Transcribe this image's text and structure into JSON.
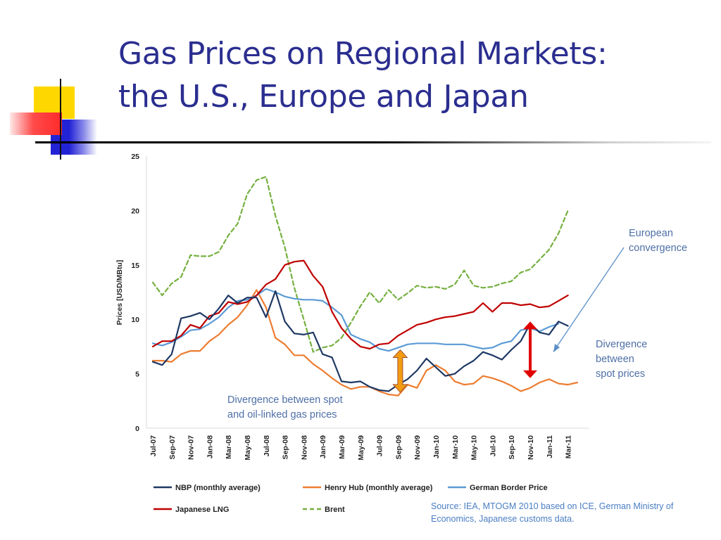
{
  "slide": {
    "title_line1": "Gas Prices on Regional Markets:",
    "title_line2": "the U.S., Europe and Japan",
    "source": "Source: IEA, MTOGM 2010 based on ICE, German Ministry of Economics, Japanese customs data.",
    "colors": {
      "title": "#2b2e8f",
      "rule": "#000000",
      "deco_yellow": "#ffd700",
      "deco_blue": "#2323d6",
      "deco_red": "#ff3b3b"
    }
  },
  "chart_data": {
    "type": "line",
    "ylabel": "Prices [USD/MBtu]",
    "ylim": [
      0,
      25
    ],
    "yticks": [
      0,
      5,
      10,
      15,
      20,
      25
    ],
    "x_tick_labels": [
      "Jul-07",
      "Sep-07",
      "Nov-07",
      "Jan-08",
      "Mar-08",
      "May-08",
      "Jul-08",
      "Sep-08",
      "Nov-08",
      "Jan-09",
      "Mar-09",
      "May-09",
      "Jul-09",
      "Sep-09",
      "Nov-09",
      "Jan-10",
      "Mar-10",
      "May-10",
      "Jul-10",
      "Sep-10",
      "Nov-10",
      "Jan-11",
      "Mar-11"
    ],
    "months": [
      "Jul-07",
      "Aug-07",
      "Sep-07",
      "Oct-07",
      "Nov-07",
      "Dec-07",
      "Jan-08",
      "Feb-08",
      "Mar-08",
      "Apr-08",
      "May-08",
      "Jun-08",
      "Jul-08",
      "Aug-08",
      "Sep-08",
      "Oct-08",
      "Nov-08",
      "Dec-08",
      "Jan-09",
      "Feb-09",
      "Mar-09",
      "Apr-09",
      "May-09",
      "Jun-09",
      "Jul-09",
      "Aug-09",
      "Sep-09",
      "Oct-09",
      "Nov-09",
      "Dec-09",
      "Jan-10",
      "Feb-10",
      "Mar-10",
      "Apr-10",
      "May-10",
      "Jun-10",
      "Jul-10",
      "Aug-10",
      "Sep-10",
      "Oct-10",
      "Nov-10",
      "Dec-10",
      "Jan-11",
      "Feb-11",
      "Mar-11",
      "Apr-11"
    ],
    "series": [
      {
        "name": "NBP (monthly average)",
        "color": "#1f3864",
        "dash": "",
        "values": [
          6.1,
          5.8,
          6.8,
          10.1,
          10.3,
          10.6,
          10.0,
          11.0,
          12.2,
          11.5,
          12.0,
          12.0,
          10.2,
          12.6,
          9.8,
          8.7,
          8.6,
          8.8,
          6.8,
          6.5,
          4.3,
          4.2,
          4.3,
          3.8,
          3.5,
          3.4,
          4.0,
          4.5,
          5.3,
          6.4,
          5.6,
          4.8,
          5.0,
          5.7,
          6.2,
          7.0,
          6.7,
          6.3,
          7.2,
          8.0,
          9.6,
          8.8,
          8.6,
          9.8,
          9.4,
          null
        ]
      },
      {
        "name": "Henry Hub (monthly average)",
        "color": "#ed7d31",
        "dash": "",
        "values": [
          6.2,
          6.2,
          6.1,
          6.8,
          7.1,
          7.1,
          8.0,
          8.6,
          9.5,
          10.2,
          11.3,
          12.7,
          11.1,
          8.3,
          7.7,
          6.7,
          6.7,
          5.9,
          5.3,
          4.6,
          4.0,
          3.6,
          3.8,
          3.8,
          3.4,
          3.1,
          3.0,
          4.0,
          3.7,
          5.3,
          5.8,
          5.3,
          4.3,
          4.0,
          4.1,
          4.8,
          4.6,
          4.3,
          3.9,
          3.4,
          3.7,
          4.2,
          4.5,
          4.1,
          4.0,
          4.2
        ]
      },
      {
        "name": "German Border Price",
        "color": "#5b9bd5",
        "dash": "",
        "values": [
          7.8,
          7.6,
          7.9,
          8.4,
          9.0,
          9.1,
          9.6,
          10.2,
          11.1,
          11.7,
          11.8,
          12.2,
          12.8,
          12.5,
          12.1,
          11.9,
          11.8,
          11.8,
          11.7,
          11.1,
          10.4,
          8.6,
          8.2,
          7.9,
          7.3,
          7.1,
          7.4,
          7.7,
          7.8,
          7.8,
          7.8,
          7.7,
          7.7,
          7.7,
          7.5,
          7.3,
          7.4,
          7.8,
          8.0,
          9.0,
          9.2,
          8.9,
          9.3,
          9.6,
          null,
          null
        ]
      },
      {
        "name": "Japanese LNG",
        "color": "#c00000",
        "dash": "",
        "values": [
          7.5,
          8.0,
          8.0,
          8.5,
          9.5,
          9.2,
          10.3,
          10.6,
          11.6,
          11.4,
          11.6,
          12.2,
          13.2,
          13.7,
          15.0,
          15.3,
          15.4,
          14.0,
          13.0,
          10.7,
          9.2,
          8.2,
          7.5,
          7.3,
          7.7,
          7.8,
          8.5,
          9.0,
          9.5,
          9.7,
          10.0,
          10.2,
          10.3,
          10.5,
          10.7,
          11.5,
          10.7,
          11.5,
          11.5,
          11.3,
          11.4,
          11.1,
          11.2,
          11.7,
          12.2,
          null
        ]
      },
      {
        "name": "Brent",
        "color": "#76b041",
        "dash": "6,4",
        "values": [
          13.4,
          12.2,
          13.3,
          13.9,
          15.9,
          15.8,
          15.8,
          16.2,
          17.7,
          18.8,
          21.5,
          22.8,
          23.1,
          19.5,
          16.6,
          12.9,
          10.0,
          7.0,
          7.4,
          7.6,
          8.3,
          9.7,
          11.2,
          12.5,
          11.5,
          12.7,
          11.8,
          12.4,
          13.1,
          12.9,
          13.0,
          12.8,
          13.2,
          14.5,
          13.1,
          12.9,
          13.0,
          13.3,
          13.5,
          14.3,
          14.6,
          15.5,
          16.4,
          17.9,
          20.0,
          null
        ]
      }
    ],
    "annotations": [
      {
        "text_lines": [
          "Divergence between spot",
          "and oil-linked gas prices"
        ]
      },
      {
        "text_lines": [
          "European",
          "convergence"
        ]
      },
      {
        "text_lines": [
          "Divergence",
          "between",
          "spot prices"
        ]
      }
    ],
    "arrows": [
      {
        "kind": "double",
        "color": "#f39c12",
        "month": "Sep-09",
        "from": 7.2,
        "to": 3.3
      },
      {
        "kind": "double",
        "color": "#e00000",
        "month": "Nov-10",
        "from": 9.8,
        "to": 4.6
      }
    ],
    "legend": {
      "placement": "bottom",
      "entries": [
        "NBP (monthly average)",
        "Henry Hub (monthly average)",
        "German Border Price",
        "Japanese LNG",
        "Brent"
      ]
    }
  }
}
